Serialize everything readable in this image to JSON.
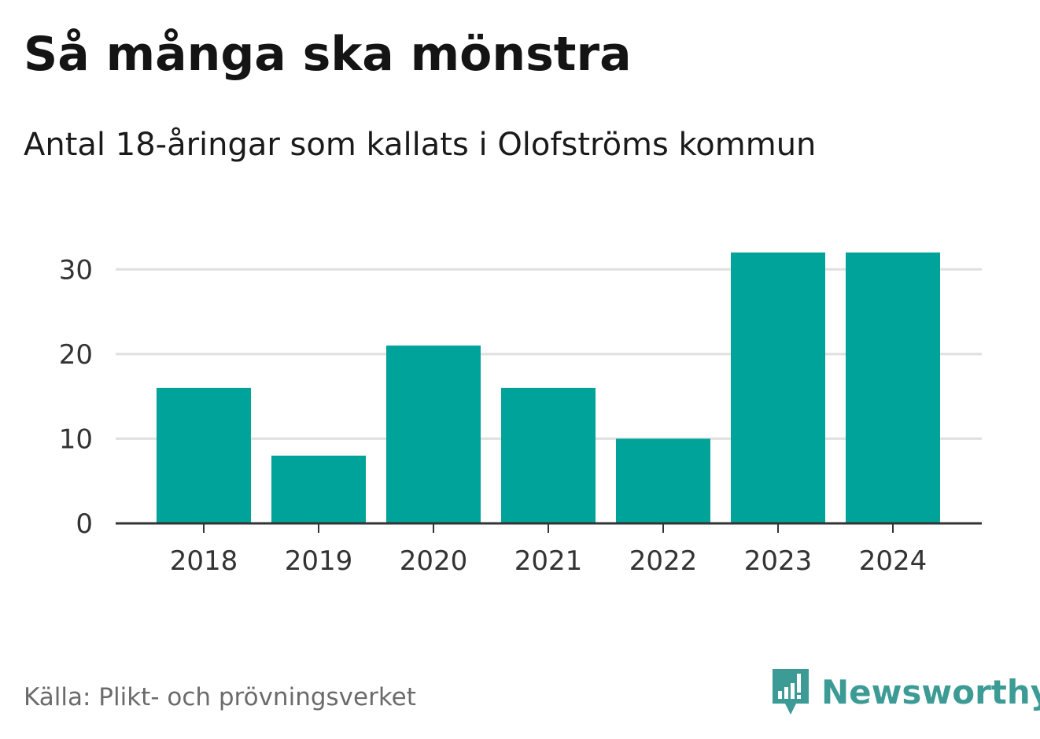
{
  "header": {
    "title": "Så många ska mönstra",
    "subtitle": "Antal 18-åringar som kallats i Olofströms kommun"
  },
  "footer": {
    "source": "Källa: Plikt- och prövningsverket",
    "brand": "Newsworthy",
    "brand_color": "#3d9b96"
  },
  "chart_data": {
    "type": "bar",
    "title": "Så många ska mönstra",
    "subtitle": "Antal 18-åringar som kallats i Olofströms kommun",
    "categories": [
      "2018",
      "2019",
      "2020",
      "2021",
      "2022",
      "2023",
      "2024"
    ],
    "values": [
      16,
      8,
      21,
      16,
      10,
      32,
      32
    ],
    "xlabel": "",
    "ylabel": "",
    "ylim": [
      0,
      33
    ],
    "yticks": [
      "0",
      "10",
      "20",
      "30"
    ],
    "ytick_values": [
      0,
      10,
      20,
      30
    ],
    "grid": true,
    "bar_color": "#00a39a"
  }
}
